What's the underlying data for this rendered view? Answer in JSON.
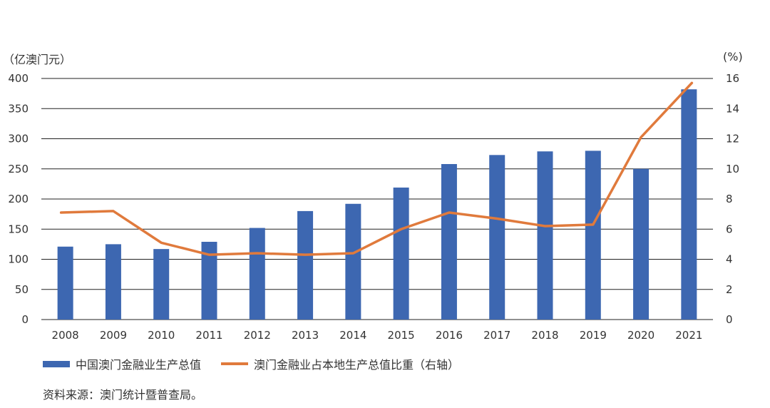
{
  "chart_data": {
    "type": "bar+line",
    "categories": [
      "2008",
      "2009",
      "2010",
      "2011",
      "2012",
      "2013",
      "2014",
      "2015",
      "2016",
      "2017",
      "2018",
      "2019",
      "2020",
      "2021"
    ],
    "series": [
      {
        "name": "中国澳门金融业生产总值",
        "type": "bar",
        "axis": "left",
        "values": [
          121,
          125,
          117,
          129,
          152,
          180,
          192,
          219,
          258,
          273,
          279,
          280,
          250,
          382
        ]
      },
      {
        "name": "澳门金融业占本地生产总值比重（右轴）",
        "type": "line",
        "axis": "right",
        "values": [
          7.1,
          7.2,
          5.1,
          4.3,
          4.4,
          4.3,
          4.4,
          6.0,
          7.1,
          6.7,
          6.2,
          6.3,
          12.1,
          15.7
        ]
      }
    ],
    "left_axis": {
      "unit": "（亿澳门元）",
      "ticks": [
        "0",
        "50",
        "100",
        "150",
        "200",
        "250",
        "300",
        "350",
        "400"
      ],
      "ylim": [
        0,
        400
      ]
    },
    "right_axis": {
      "unit": "(%)",
      "ticks": [
        "0",
        "2",
        "4",
        "6",
        "8",
        "10",
        "12",
        "14",
        "16"
      ],
      "ylim": [
        0,
        16
      ]
    },
    "colors": {
      "bar": "#3d67b1",
      "line": "#e07a3c",
      "grid": "#222222"
    },
    "grid": true,
    "legend_position": "bottom-left"
  },
  "labels": {
    "left_unit": "（亿澳门元）",
    "right_unit": "(%)",
    "legend_bar": "中国澳门金融业生产总值",
    "legend_line": "澳门金融业占本地生产总值比重（右轴）",
    "source": "资料来源：澳门统计暨普查局。"
  }
}
